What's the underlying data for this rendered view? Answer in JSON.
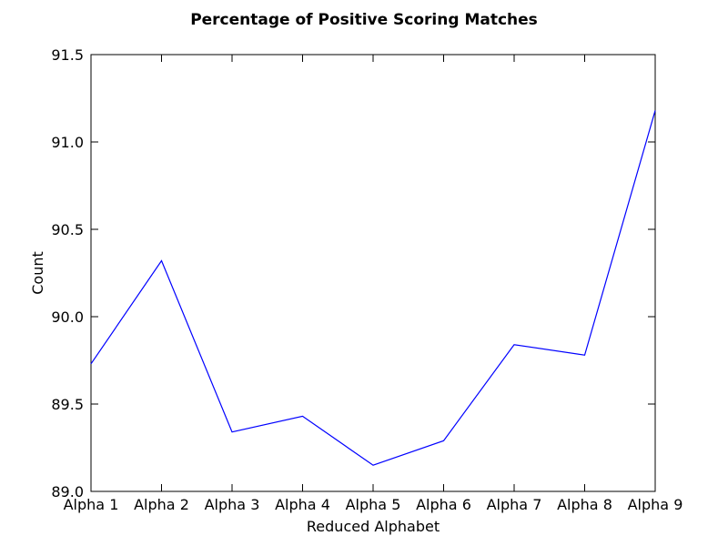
{
  "chart_data": {
    "type": "line",
    "title": "Percentage of Positive Scoring Matches",
    "xlabel": "Reduced Alphabet",
    "ylabel": "Count",
    "categories": [
      "Alpha 1",
      "Alpha 2",
      "Alpha 3",
      "Alpha 4",
      "Alpha 5",
      "Alpha 6",
      "Alpha 7",
      "Alpha 8",
      "Alpha 9"
    ],
    "series": [
      {
        "values": [
          89.73,
          90.32,
          89.34,
          89.43,
          89.15,
          89.29,
          89.84,
          89.78,
          91.18
        ],
        "color": "#0000ff"
      }
    ],
    "ylim": [
      89.0,
      91.5
    ],
    "yticks": [
      "89.0",
      "89.5",
      "90.0",
      "90.5",
      "91.0",
      "91.5"
    ],
    "grid": false,
    "legend": "none"
  }
}
